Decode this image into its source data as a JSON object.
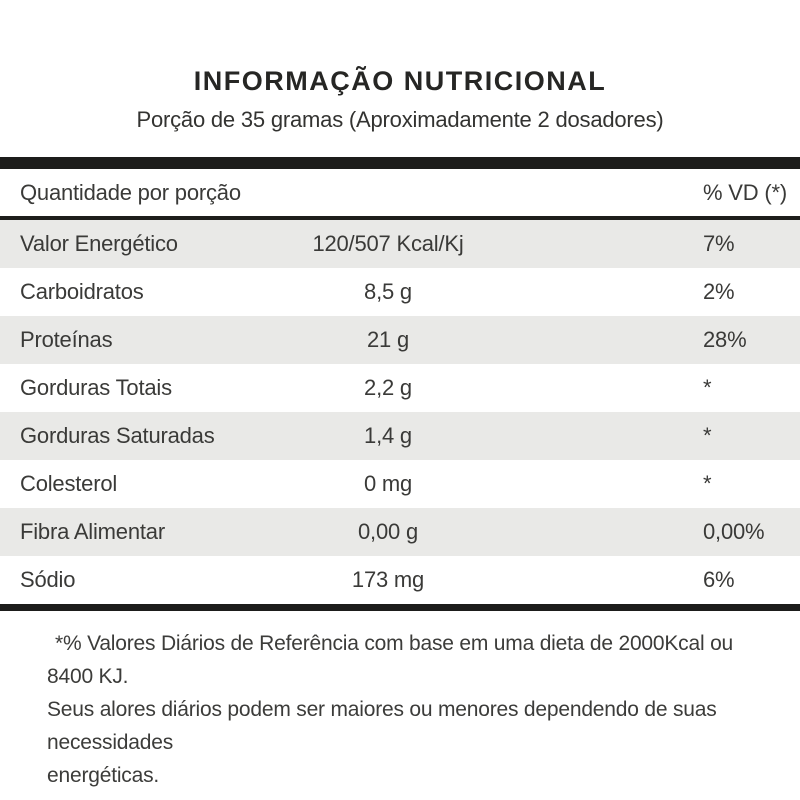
{
  "title": "INFORMAÇÃO NUTRICIONAL",
  "subtitle": "Porção de 35 gramas (Aproximadamente 2 dosadores)",
  "table": {
    "header": {
      "quantity_label": "Quantidade por porção",
      "vd_label": "% VD (*)"
    },
    "rows": [
      {
        "label": "Valor Energético",
        "amount": "120/507 Kcal/Kj",
        "vd": "7%"
      },
      {
        "label": "Carboidratos",
        "amount": "8,5 g",
        "vd": "2%"
      },
      {
        "label": "Proteínas",
        "amount": "21 g",
        "vd": "28%"
      },
      {
        "label": "Gorduras Totais",
        "amount": "2,2 g",
        "vd": "*"
      },
      {
        "label": "Gorduras Saturadas",
        "amount": "1,4 g",
        "vd": "*"
      },
      {
        "label": "Colesterol",
        "amount": "0 mg",
        "vd": "*"
      },
      {
        "label": "Fibra Alimentar",
        "amount": "0,00 g",
        "vd": "0,00%"
      },
      {
        "label": "Sódio",
        "amount": "173 mg",
        "vd": "6%"
      }
    ]
  },
  "footnote": {
    "line1": "*% Valores Diários de Referência com base em uma dieta de 2000Kcal ou 8400 KJ.",
    "line2": "Seus alores diários podem ser maiores ou menores dependendo de suas necessidades",
    "line3": "energéticas."
  },
  "colors": {
    "bar_black": "#1d1d1b",
    "row_stripe_gray": "#e9e9e7",
    "text_dark": "#3a3a38",
    "background": "#ffffff"
  }
}
